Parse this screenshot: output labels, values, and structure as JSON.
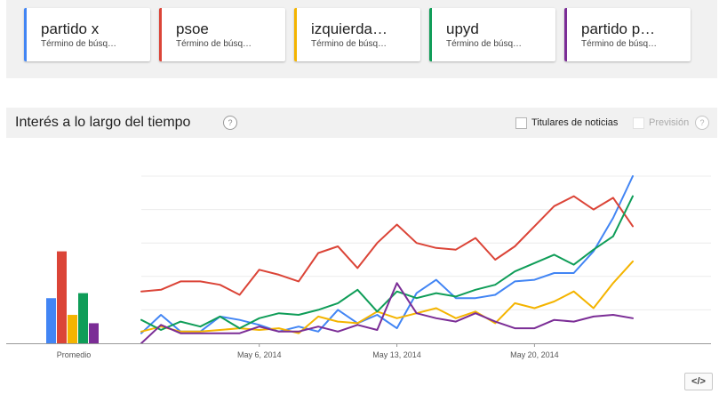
{
  "terms": [
    {
      "name": "partido x",
      "subtitle": "Término de búsq…",
      "color": "#4285f4"
    },
    {
      "name": "psoe",
      "subtitle": "Término de búsq…",
      "color": "#db4437"
    },
    {
      "name": "izquierda…",
      "subtitle": "Término de búsq…",
      "color": "#f4b400"
    },
    {
      "name": "upyd",
      "subtitle": "Término de búsq…",
      "color": "#0f9d58"
    },
    {
      "name": "partido p…",
      "subtitle": "Término de búsq…",
      "color": "#7b2d96"
    }
  ],
  "interest": {
    "title": "Interés a lo largo del tiempo",
    "help_icon": "question-icon",
    "headlines_label": "Titulares de noticias",
    "forecast_label": "Previsión",
    "headlines_checked": false,
    "forecast_checked": false
  },
  "embed_button": "</>",
  "chart_data": [
    {
      "type": "bar",
      "categories": [
        "Promedio"
      ],
      "series": [
        {
          "name": "partido x",
          "values": [
            27
          ]
        },
        {
          "name": "psoe",
          "values": [
            55
          ]
        },
        {
          "name": "izquierda…",
          "values": [
            17
          ]
        },
        {
          "name": "upyd",
          "values": [
            30
          ]
        },
        {
          "name": "partido p…",
          "values": [
            12
          ]
        }
      ],
      "xlabel": "Promedio",
      "ylim": [
        0,
        100
      ],
      "grid": false
    },
    {
      "type": "line",
      "x_ticks": [
        "May 6, 2014",
        "May 13, 2014",
        "May 20, 2014"
      ],
      "x_tick_index": [
        6,
        13,
        20
      ],
      "ylim": [
        0,
        100
      ],
      "grid": true,
      "grid_values": [
        20,
        40,
        60,
        80,
        100
      ],
      "series": [
        {
          "name": "partido x",
          "color": "#4285f4",
          "values": [
            6,
            17,
            7,
            7,
            16,
            14,
            11,
            7,
            10,
            7,
            20,
            12,
            17,
            9,
            30,
            38,
            27,
            27,
            29,
            37,
            38,
            42,
            42,
            55,
            75,
            100
          ]
        },
        {
          "name": "psoe",
          "color": "#db4437",
          "values": [
            31,
            32,
            37,
            37,
            35,
            29,
            44,
            41,
            37,
            54,
            58,
            45,
            60,
            71,
            60,
            57,
            56,
            63,
            50,
            58,
            70,
            82,
            88,
            80,
            87,
            70
          ]
        },
        {
          "name": "izquierda…",
          "color": "#f4b400",
          "values": [
            7,
            10,
            7,
            7,
            8,
            9,
            8,
            9,
            6,
            16,
            13,
            12,
            19,
            15,
            18,
            21,
            15,
            19,
            12,
            24,
            21,
            25,
            31,
            21,
            36,
            49
          ]
        },
        {
          "name": "upyd",
          "color": "#0f9d58",
          "values": [
            14,
            8,
            13,
            10,
            16,
            9,
            15,
            18,
            17,
            20,
            24,
            32,
            19,
            31,
            27,
            30,
            28,
            32,
            35,
            43,
            48,
            53,
            47,
            56,
            64,
            88
          ]
        },
        {
          "name": "partido p…",
          "color": "#7b2d96",
          "values": [
            0,
            11,
            6,
            6,
            6,
            6,
            10,
            7,
            7,
            10,
            7,
            11,
            8,
            36,
            18,
            15,
            13,
            18,
            13,
            9,
            9,
            14,
            13,
            16,
            17,
            15
          ]
        }
      ]
    }
  ]
}
